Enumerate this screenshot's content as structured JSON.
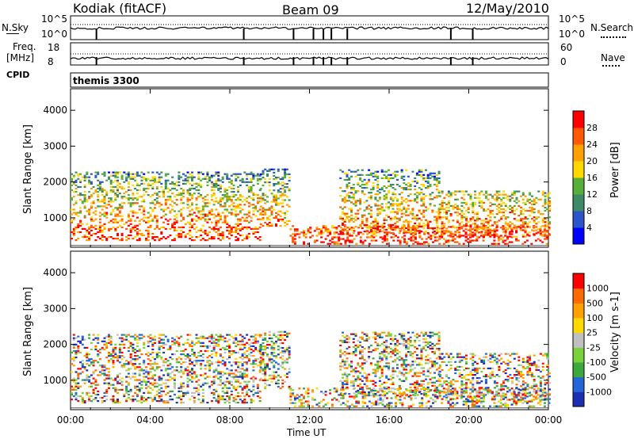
{
  "header": {
    "station": "Kodiak (fitACF)",
    "beam": "Beam 09",
    "date": "12/May/2010"
  },
  "summary_panels": {
    "sky_label": "N.Sky",
    "sky_ticks": [
      "10^5",
      "10^0"
    ],
    "search_label": "N.Search",
    "search_ticks": [
      "10^5",
      "10^0"
    ],
    "freq_label_1": "Freq.",
    "freq_label_2": "[MHz]",
    "freq_ticks": [
      "18",
      "8"
    ],
    "nave_label": "Nave",
    "nave_ticks": [
      "60",
      "0"
    ],
    "cpid_label": "CPID",
    "cpid_value": "themis 3300"
  },
  "chart_data": [
    {
      "type": "heatmap",
      "title": "",
      "xlabel": "",
      "ylabel": "Slant Range [km]",
      "x_tick_labels": [
        "00:00",
        "04:00",
        "08:00",
        "12:00",
        "16:00",
        "20:00",
        "00:00"
      ],
      "y_tick_labels": [
        "1000",
        "2000",
        "3000",
        "4000"
      ],
      "xlim": [
        0,
        24
      ],
      "ylim": [
        180,
        4600
      ],
      "colorbar": {
        "label": "Power [dB]",
        "tick_labels": [
          "28",
          "24",
          "20",
          "16",
          "12",
          "8",
          "4"
        ],
        "colors": [
          "#0000ff",
          "#2b55c8",
          "#3d8a66",
          "#55b038",
          "#ffd800",
          "#ffa000",
          "#ff5a00",
          "#ff0000"
        ]
      },
      "echo_regions": [
        {
          "t_start": 0.0,
          "t_end": 9.5,
          "r_min": 400,
          "r_max": 2300
        },
        {
          "t_start": 9.5,
          "t_end": 11.0,
          "r_min": 800,
          "r_max": 2400
        },
        {
          "t_start": 11.0,
          "t_end": 24.0,
          "r_min": 300,
          "r_max": 800
        },
        {
          "t_start": 13.5,
          "t_end": 18.5,
          "r_min": 600,
          "r_max": 2400
        },
        {
          "t_start": 18.5,
          "t_end": 24.0,
          "r_min": 500,
          "r_max": 1800
        }
      ]
    },
    {
      "type": "heatmap",
      "title": "",
      "xlabel": "Time UT",
      "ylabel": "Slant Range [km]",
      "x_tick_labels": [
        "00:00",
        "04:00",
        "08:00",
        "12:00",
        "16:00",
        "20:00",
        "00:00"
      ],
      "y_tick_labels": [
        "1000",
        "2000",
        "3000",
        "4000"
      ],
      "xlim": [
        0,
        24
      ],
      "ylim": [
        180,
        4600
      ],
      "colorbar": {
        "label": "Velocity [m s-1]",
        "tick_labels": [
          "1000",
          "500",
          "100",
          "25",
          "-25",
          "-100",
          "-500",
          "-1000"
        ],
        "colors": [
          "#1c2fb0",
          "#2466d8",
          "#3ca83c",
          "#7ad23a",
          "#c0c0c0",
          "#ffd800",
          "#ffa000",
          "#ff6a00",
          "#ff0000"
        ]
      },
      "echo_regions": [
        {
          "t_start": 0.0,
          "t_end": 9.5,
          "r_min": 400,
          "r_max": 2300
        },
        {
          "t_start": 9.5,
          "t_end": 11.0,
          "r_min": 800,
          "r_max": 2400
        },
        {
          "t_start": 11.0,
          "t_end": 24.0,
          "r_min": 300,
          "r_max": 800
        },
        {
          "t_start": 13.5,
          "t_end": 18.5,
          "r_min": 600,
          "r_max": 2400
        },
        {
          "t_start": 18.5,
          "t_end": 24.0,
          "r_min": 500,
          "r_max": 1800
        }
      ]
    }
  ]
}
